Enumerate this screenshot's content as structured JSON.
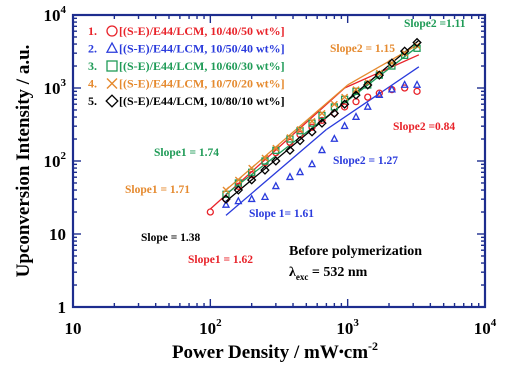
{
  "chart_data": {
    "type": "scatter",
    "xlabel": {
      "main": "Power Density  /  mW",
      "dot": "•",
      "unit": "cm",
      "sup": "-2"
    },
    "ylabel": "Upconversion  Intensity  /  a.u.",
    "x_scale": "log",
    "y_scale": "log",
    "xlim": [
      10,
      10000
    ],
    "ylim": [
      1,
      10000
    ],
    "x_ticks": [
      {
        "value": 10,
        "base": "10",
        "sup": ""
      },
      {
        "value": 100,
        "base": "10",
        "sup": "2"
      },
      {
        "value": 1000,
        "base": "10",
        "sup": "3"
      },
      {
        "value": 10000,
        "base": "10",
        "sup": "4"
      }
    ],
    "y_ticks": [
      {
        "value": 1,
        "base": "1",
        "sup": ""
      },
      {
        "value": 10,
        "base": "10",
        "sup": ""
      },
      {
        "value": 100,
        "base": "10",
        "sup": "2"
      },
      {
        "value": 1000,
        "base": "10",
        "sup": "3"
      },
      {
        "value": 10000,
        "base": "10",
        "sup": "4"
      }
    ],
    "series": [
      {
        "index": "1.",
        "name": "[(S-E)/E44/LCM, 10/40/50 wt%]",
        "color": "#e8232a",
        "marker": "circle",
        "x": [
          100,
          130,
          160,
          200,
          250,
          300,
          380,
          450,
          550,
          650,
          800,
          950,
          1150,
          1400,
          1700,
          2100,
          2600,
          3200
        ],
        "y": [
          20,
          30,
          45,
          65,
          95,
          130,
          180,
          230,
          290,
          360,
          450,
          550,
          650,
          750,
          850,
          950,
          1000,
          900
        ],
        "fits": [
          {
            "x": [
              100,
              950
            ],
            "y": [
              22,
              1000
            ]
          },
          {
            "x": [
              950,
              3300
            ],
            "y": [
              1000,
              2850
            ]
          }
        ]
      },
      {
        "index": "2.",
        "name": "[(S-E)/E44/LCM, 10/50/40 wt%]",
        "color": "#2a3bdc",
        "marker": "triangle",
        "x": [
          130,
          160,
          200,
          250,
          300,
          380,
          450,
          550,
          650,
          800,
          950,
          1150,
          1400,
          1700,
          2100,
          2600,
          3200
        ],
        "y": [
          25,
          28,
          30,
          32,
          45,
          60,
          70,
          90,
          140,
          200,
          300,
          400,
          550,
          800,
          950,
          1100,
          1100
        ],
        "fits": [
          {
            "x": [
              130,
              700
            ],
            "y": [
              18,
              270
            ]
          },
          {
            "x": [
              700,
              3300
            ],
            "y": [
              270,
              1950
            ]
          }
        ]
      },
      {
        "index": "3.",
        "name": "[(S-E)/E44/LCM, 10/60/30 wt%]",
        "color": "#1f9b57",
        "marker": "square",
        "x": [
          130,
          160,
          200,
          250,
          300,
          380,
          450,
          550,
          650,
          800,
          950,
          1150,
          1400,
          1700,
          2100,
          2600,
          3200
        ],
        "y": [
          35,
          50,
          70,
          100,
          140,
          200,
          260,
          330,
          420,
          550,
          700,
          900,
          1100,
          1500,
          2000,
          2800,
          3500
        ],
        "fits": [
          {
            "x": [
              130,
              3300
            ],
            "y": [
              35,
              3800
            ]
          }
        ]
      },
      {
        "index": "4.",
        "name": "[(S-E)/E44/LCM, 10/70/20 wt%]",
        "color": "#e58a2f",
        "marker": "x",
        "x": [
          130,
          160,
          200,
          250,
          300,
          380,
          450,
          550,
          650,
          800,
          950,
          1150,
          1400,
          1700,
          2100,
          2600,
          3200
        ],
        "y": [
          40,
          55,
          80,
          110,
          150,
          210,
          270,
          350,
          450,
          600,
          750,
          950,
          1200,
          1600,
          2200,
          3000,
          3800
        ],
        "fits": [
          {
            "x": [
              130,
              1000
            ],
            "y": [
              40,
              1100
            ]
          },
          {
            "x": [
              1000,
              3300
            ],
            "y": [
              1100,
              4000
            ]
          }
        ]
      },
      {
        "index": "5.",
        "name": "[(S-E)/E44/LCM, 10/80/10 wt%]",
        "color": "#000000",
        "marker": "diamond",
        "x": [
          130,
          160,
          200,
          250,
          300,
          380,
          450,
          550,
          650,
          800,
          950,
          1150,
          1400,
          1700,
          2100,
          2600,
          3200
        ],
        "y": [
          30,
          40,
          55,
          75,
          100,
          140,
          190,
          250,
          330,
          450,
          600,
          800,
          1100,
          1500,
          2200,
          3200,
          4200
        ],
        "fits": [
          {
            "x": [
              130,
              3300
            ],
            "y": [
              28,
              4500
            ]
          }
        ]
      }
    ],
    "annotations": [
      {
        "text": "Slope2 =1.11",
        "color": "#1f9b57"
      },
      {
        "text": "Slope2 = 1.15",
        "color": "#e58a2f"
      },
      {
        "text": "Slope2 =0.84",
        "color": "#e8232a"
      },
      {
        "text": "Slope1 = 1.74",
        "color": "#1f9b57"
      },
      {
        "text": "Slope2 = 1.27",
        "color": "#2a3bdc"
      },
      {
        "text": "Slope1 = 1.71",
        "color": "#e58a2f"
      },
      {
        "text": "Slope 1= 1.61",
        "color": "#2a3bdc"
      },
      {
        "text": "Slope = 1.38",
        "color": "#000000"
      },
      {
        "text": "Slope1 = 1.62",
        "color": "#e8232a"
      }
    ],
    "condition": {
      "line1": "Before polymerization",
      "lambda": "λ",
      "sub": "exc",
      "rest": " = 532 nm"
    },
    "frame_color": "#1d2d8e"
  }
}
